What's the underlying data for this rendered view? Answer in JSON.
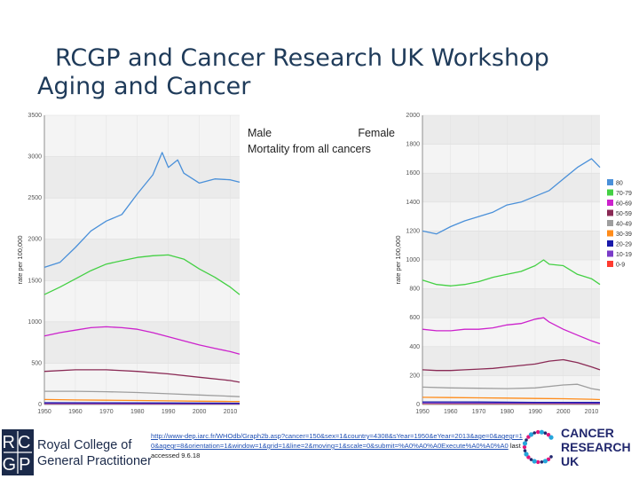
{
  "slide": {
    "title_line1": "RCGP and Cancer Research UK Workshop",
    "title_line2": "Aging and Cancer",
    "caption_male": "Male",
    "caption_female": "Female",
    "caption_line2": "Mortality from all cancers"
  },
  "footer": {
    "link_text": "http://www-dep.iarc.fr/WHOdb/Graph2b.asp?cancer=150&sex=1&country=4308&sYear=1950&eYear=2013&age=0&agegr=10&agegr=8&orientation=1&window=1&grid=1&line=2&moving=1&scale=0&submit=%A0%A0%A0Execute%A0%A0%A0",
    "accessed_text": "last accessed 9.6.18"
  },
  "logos": {
    "rcgp_abbrev_top": "RC",
    "rcgp_abbrev_bottom": "GP",
    "rcgp_name_line1": "Royal College of",
    "rcgp_name_line2": "General Practitioners",
    "cruk_line1": "CANCER",
    "cruk_line2": "RESEARCH",
    "cruk_line3": "UK"
  },
  "colors": {
    "title": "#1f3b5a",
    "link": "#1f4fb3",
    "rcgp_navy": "#1b2a4a",
    "cruk_navy": "#22286e",
    "cruk_pink": "#e0157a",
    "cruk_blue": "#26a6dc"
  },
  "chart_data": [
    {
      "type": "line",
      "title": "Male",
      "xlabel": "",
      "ylabel": "rate per 100,000",
      "xlim": [
        1950,
        2013
      ],
      "ylim": [
        0,
        3500
      ],
      "yticks": [
        0,
        500,
        1000,
        1500,
        2000,
        2500,
        3000,
        3500
      ],
      "xticks": [
        1950,
        1960,
        1970,
        1980,
        1990,
        2000,
        2010
      ],
      "legend": [
        "80",
        "70-79",
        "60-69",
        "50-59",
        "40-49",
        "30-39",
        "20-29",
        "10-19",
        "0-9"
      ],
      "series": [
        {
          "name": "80",
          "color": "#4a90d9",
          "x": [
            1950,
            1955,
            1960,
            1965,
            1970,
            1975,
            1980,
            1985,
            1988,
            1990,
            1993,
            1995,
            2000,
            2005,
            2010,
            2013
          ],
          "values": [
            1660,
            1720,
            1900,
            2100,
            2220,
            2300,
            2550,
            2780,
            3050,
            2870,
            2960,
            2800,
            2680,
            2730,
            2720,
            2690
          ]
        },
        {
          "name": "70-79",
          "color": "#44d044",
          "x": [
            1950,
            1955,
            1960,
            1965,
            1970,
            1975,
            1980,
            1985,
            1990,
            1995,
            2000,
            2005,
            2010,
            2013
          ],
          "values": [
            1330,
            1420,
            1520,
            1620,
            1700,
            1740,
            1780,
            1800,
            1810,
            1760,
            1640,
            1540,
            1420,
            1330
          ]
        },
        {
          "name": "60-69",
          "color": "#cc22cc",
          "x": [
            1950,
            1955,
            1960,
            1965,
            1970,
            1975,
            1980,
            1985,
            1990,
            1995,
            2000,
            2005,
            2010,
            2013
          ],
          "values": [
            830,
            870,
            900,
            930,
            940,
            930,
            910,
            870,
            820,
            770,
            720,
            680,
            640,
            610
          ]
        },
        {
          "name": "50-59",
          "color": "#8a2a55",
          "x": [
            1950,
            1960,
            1970,
            1980,
            1990,
            2000,
            2010,
            2013
          ],
          "values": [
            400,
            420,
            420,
            400,
            370,
            330,
            290,
            270
          ]
        },
        {
          "name": "40-49",
          "color": "#9e9e9e",
          "x": [
            1950,
            1960,
            1970,
            1980,
            1990,
            2000,
            2010,
            2013
          ],
          "values": [
            160,
            160,
            155,
            145,
            130,
            115,
            100,
            95
          ]
        },
        {
          "name": "30-39",
          "color": "#ff8c1a",
          "x": [
            1950,
            1960,
            1970,
            1980,
            1990,
            2000,
            2010,
            2013
          ],
          "values": [
            60,
            55,
            52,
            48,
            44,
            40,
            36,
            35
          ]
        },
        {
          "name": "20-29",
          "color": "#1a1aaa",
          "x": [
            1950,
            1970,
            1990,
            2013
          ],
          "values": [
            22,
            20,
            18,
            15
          ]
        },
        {
          "name": "10-19",
          "color": "#7a3cc8",
          "x": [
            1950,
            1970,
            1990,
            2013
          ],
          "values": [
            12,
            11,
            10,
            9
          ]
        },
        {
          "name": "0-9",
          "color": "#ff3b30",
          "x": [
            1950,
            1970,
            1990,
            2013
          ],
          "values": [
            10,
            9,
            8,
            7
          ]
        }
      ]
    },
    {
      "type": "line",
      "title": "Female",
      "xlabel": "",
      "ylabel": "rate per 100,000",
      "xlim": [
        1950,
        2013
      ],
      "ylim": [
        0,
        2000
      ],
      "yticks": [
        0,
        200,
        400,
        600,
        800,
        1000,
        1200,
        1400,
        1600,
        1800,
        2000
      ],
      "xticks": [
        1950,
        1960,
        1970,
        1980,
        1990,
        2000,
        2010
      ],
      "legend": [
        "80",
        "70-79",
        "60-69",
        "50-59",
        "40-49",
        "30-39",
        "20-29",
        "10-19",
        "0-9"
      ],
      "series": [
        {
          "name": "80",
          "color": "#4a90d9",
          "x": [
            1950,
            1955,
            1960,
            1965,
            1970,
            1975,
            1980,
            1985,
            1990,
            1995,
            2000,
            2005,
            2010,
            2013
          ],
          "values": [
            1200,
            1180,
            1230,
            1270,
            1300,
            1330,
            1380,
            1400,
            1440,
            1480,
            1560,
            1640,
            1700,
            1640
          ]
        },
        {
          "name": "70-79",
          "color": "#44d044",
          "x": [
            1950,
            1955,
            1960,
            1965,
            1970,
            1975,
            1980,
            1985,
            1990,
            1993,
            1995,
            2000,
            2005,
            2010,
            2013
          ],
          "values": [
            860,
            830,
            820,
            830,
            850,
            880,
            900,
            920,
            960,
            1000,
            970,
            960,
            900,
            870,
            830
          ]
        },
        {
          "name": "60-69",
          "color": "#cc22cc",
          "x": [
            1950,
            1955,
            1960,
            1965,
            1970,
            1975,
            1980,
            1985,
            1990,
            1993,
            1995,
            2000,
            2005,
            2010,
            2013
          ],
          "values": [
            520,
            510,
            510,
            520,
            520,
            530,
            550,
            560,
            590,
            600,
            570,
            520,
            480,
            440,
            420
          ]
        },
        {
          "name": "50-59",
          "color": "#8a2a55",
          "x": [
            1950,
            1955,
            1960,
            1965,
            1970,
            1975,
            1980,
            1985,
            1990,
            1995,
            2000,
            2005,
            2010,
            2013
          ],
          "values": [
            240,
            235,
            235,
            240,
            245,
            250,
            260,
            270,
            280,
            300,
            310,
            290,
            260,
            240
          ]
        },
        {
          "name": "40-49",
          "color": "#9e9e9e",
          "x": [
            1950,
            1960,
            1970,
            1980,
            1990,
            2000,
            2005,
            2010,
            2013
          ],
          "values": [
            120,
            115,
            112,
            110,
            115,
            135,
            140,
            110,
            100
          ]
        },
        {
          "name": "30-39",
          "color": "#ff8c1a",
          "x": [
            1950,
            1960,
            1970,
            1980,
            1990,
            2000,
            2010,
            2013
          ],
          "values": [
            50,
            48,
            46,
            44,
            42,
            40,
            36,
            34
          ]
        },
        {
          "name": "20-29",
          "color": "#1a1aaa",
          "x": [
            1950,
            1970,
            1990,
            2013
          ],
          "values": [
            18,
            17,
            15,
            14
          ]
        },
        {
          "name": "10-19",
          "color": "#7a3cc8",
          "x": [
            1950,
            1970,
            1990,
            2013
          ],
          "values": [
            10,
            9,
            9,
            8
          ]
        },
        {
          "name": "0-9",
          "color": "#ff3b30",
          "x": [
            1950,
            1970,
            1990,
            2013
          ],
          "values": [
            8,
            7,
            7,
            6
          ]
        }
      ]
    }
  ]
}
